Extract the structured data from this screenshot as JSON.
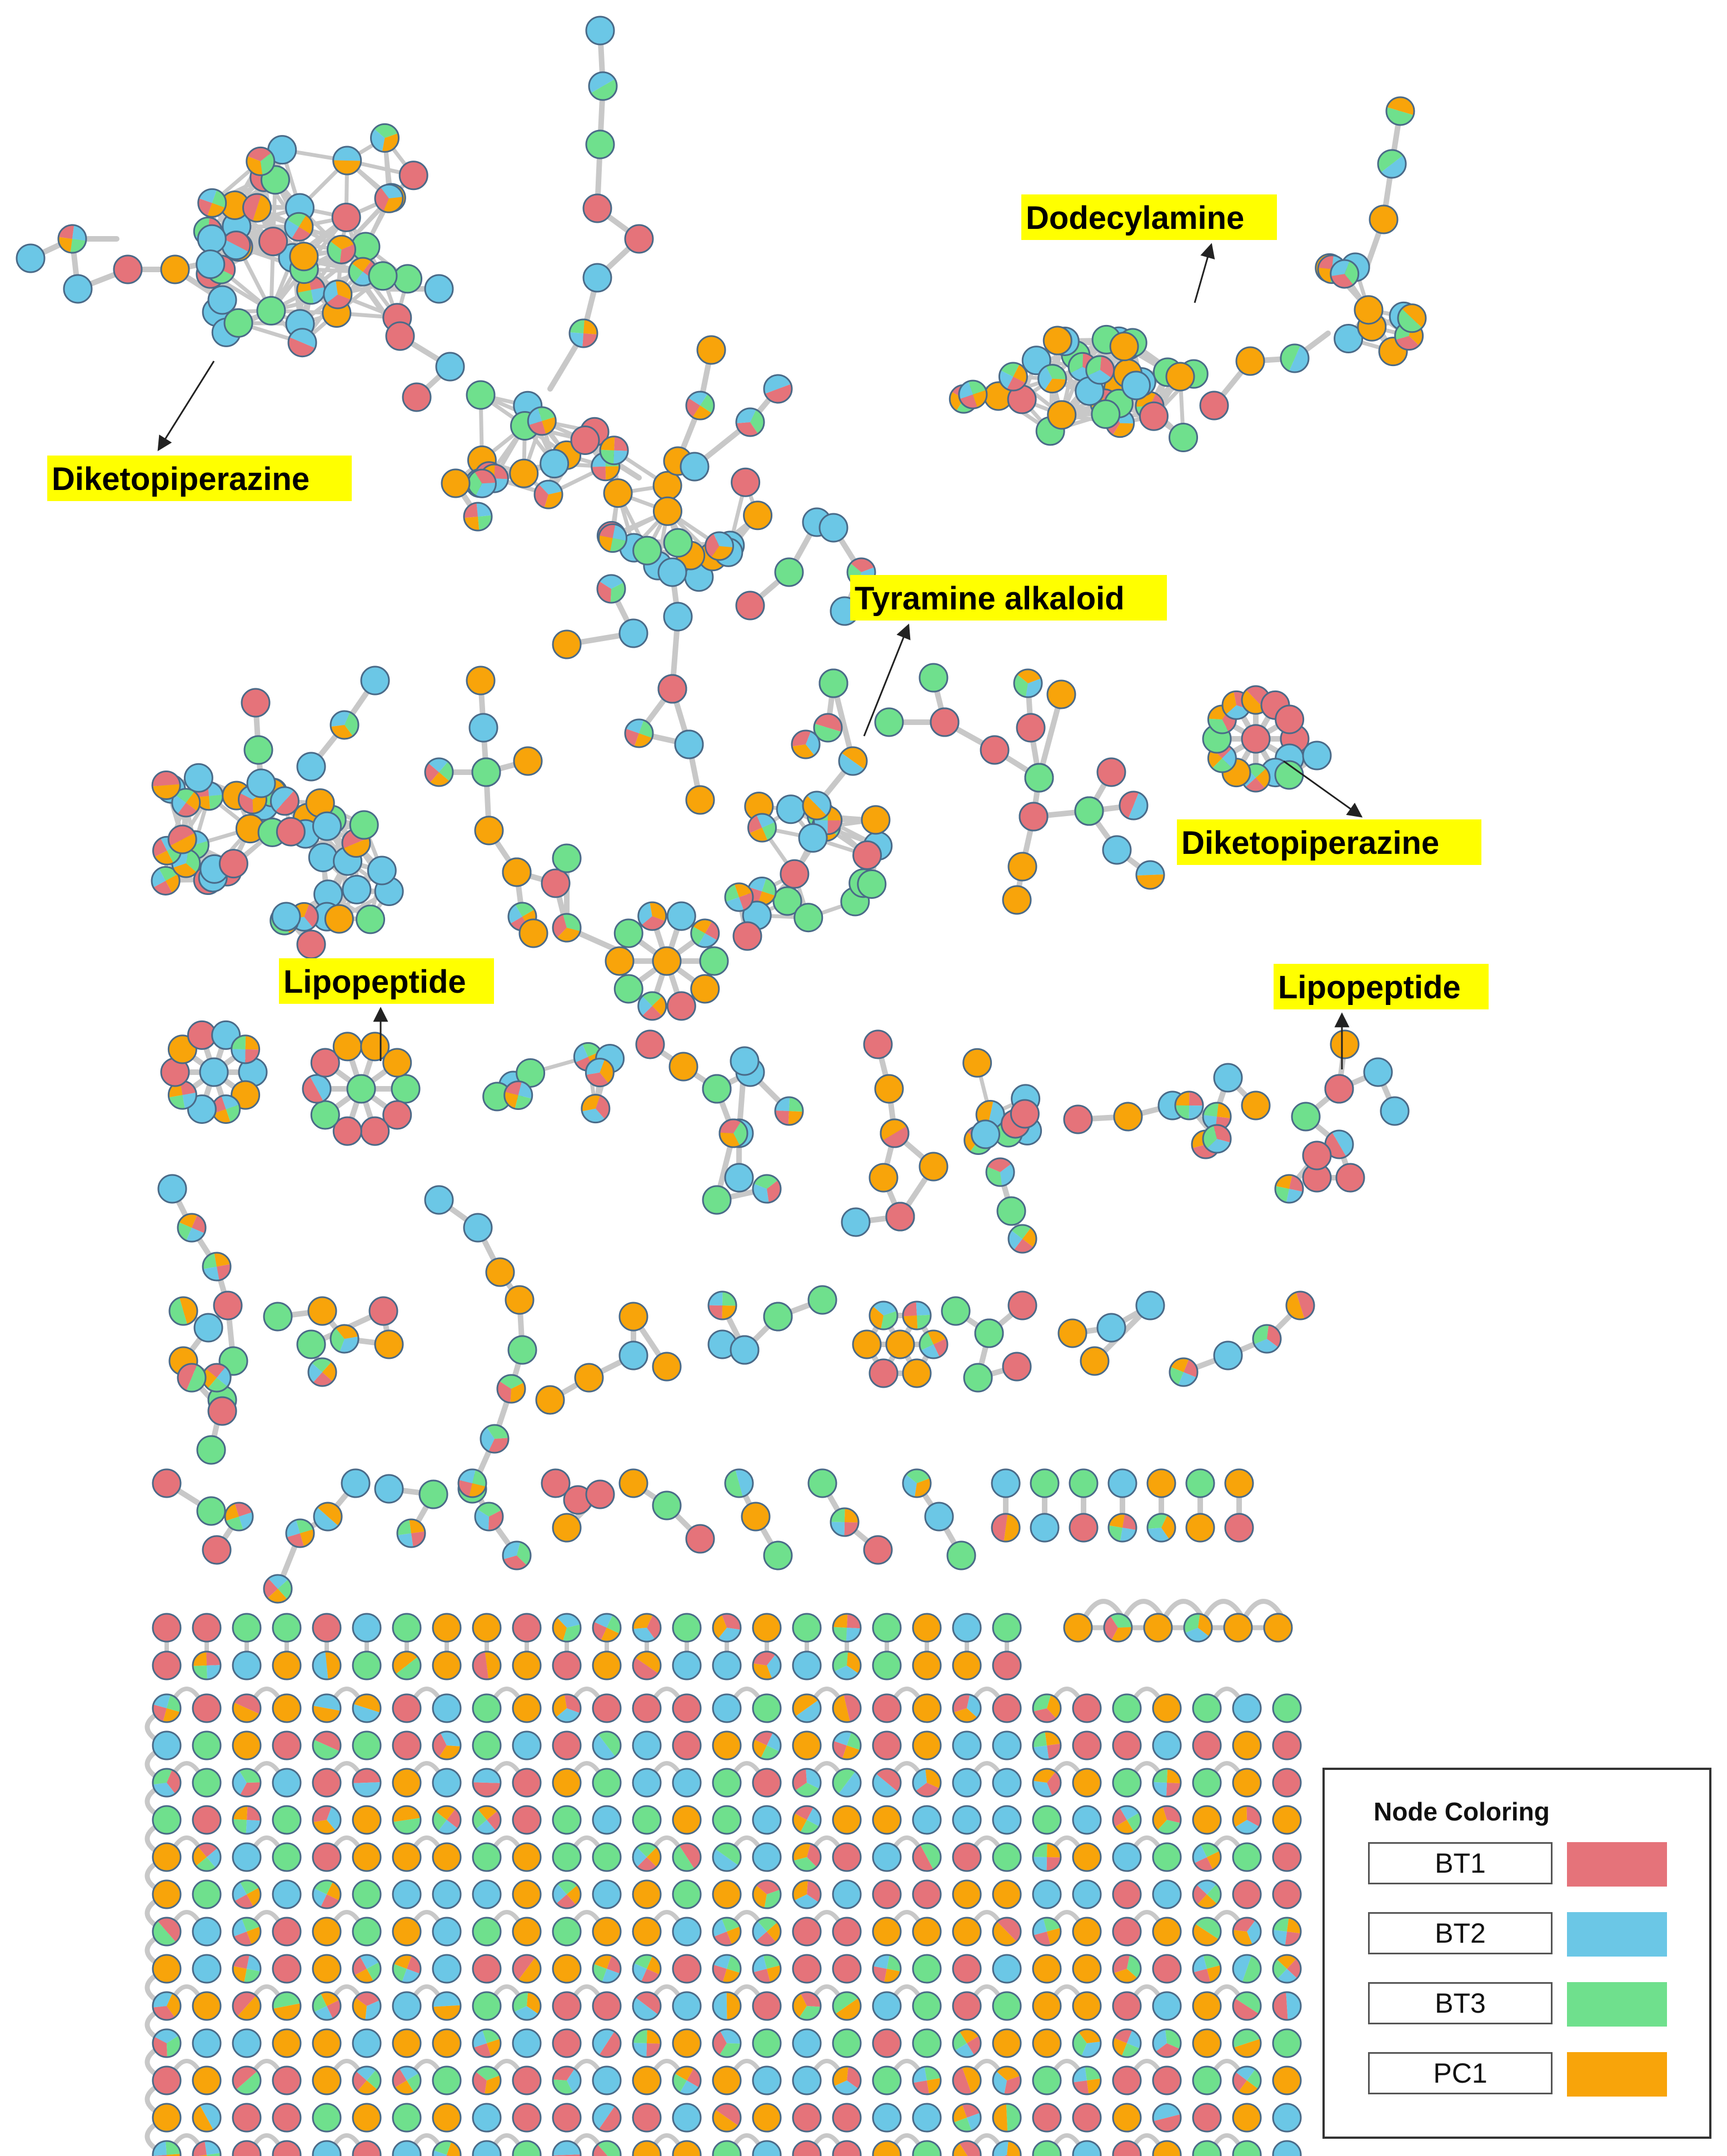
{
  "colors": {
    "BT1": "#e5737a",
    "BT2": "#6bc7e6",
    "BT3": "#6fe08d",
    "PC1": "#f8a40a"
  },
  "annotations": [
    {
      "id": "diketopiperazine-1",
      "text": "Diketopiperazine"
    },
    {
      "id": "dodecylamine",
      "text": "Dodecylamine"
    },
    {
      "id": "tyramine-alkaloid",
      "text": "Tyramine alkaloid"
    },
    {
      "id": "diketopiperazine-2",
      "text": "Diketopiperazine"
    },
    {
      "id": "lipopeptide-1",
      "text": "Lipopeptide"
    },
    {
      "id": "lipopeptide-2",
      "text": "Lipopeptide"
    }
  ],
  "legend": {
    "title": "Node Coloring",
    "items": [
      {
        "label": "BT1",
        "color": "#e5737a"
      },
      {
        "label": "BT2",
        "color": "#6bc7e6"
      },
      {
        "label": "BT3",
        "color": "#6fe08d"
      },
      {
        "label": "PC1",
        "color": "#f8a40a"
      }
    ]
  }
}
